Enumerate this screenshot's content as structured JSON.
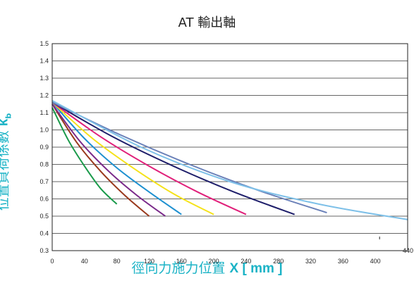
{
  "chart_data": {
    "type": "line",
    "title": "AT 輸出軸",
    "ylabel_text": "位置負荷係數",
    "ylabel_symbol": "k",
    "ylabel_sub": "b",
    "xlabel_text": "徑向力施力位置",
    "xlabel_symbol": "X [ mm ]",
    "xlim": [
      0,
      440
    ],
    "ylim": [
      0.3,
      1.5
    ],
    "xticks": [
      "0",
      "40",
      "80",
      "120",
      "160",
      "200",
      "240",
      "280",
      "320",
      "360",
      "400",
      "440"
    ],
    "yticks": [
      "0.3",
      "0.4",
      "0.5",
      "0.6",
      "0.7",
      "0.8",
      "0.9",
      "1.0",
      "1.1",
      "1.2",
      "1.3",
      "1.4",
      "1.5"
    ],
    "grid": "horizontal",
    "series": [
      {
        "color": "#1a9a4a",
        "x": [
          0,
          20,
          40,
          60,
          80
        ],
        "y": [
          1.13,
          0.94,
          0.79,
          0.66,
          0.57
        ]
      },
      {
        "color": "#9a3a1e",
        "x": [
          0,
          30,
          60,
          90,
          120
        ],
        "y": [
          1.15,
          0.93,
          0.76,
          0.62,
          0.5
        ]
      },
      {
        "color": "#7a2a8a",
        "x": [
          0,
          35,
          70,
          105,
          140
        ],
        "y": [
          1.15,
          0.93,
          0.76,
          0.62,
          0.5
        ]
      },
      {
        "color": "#1e90d0",
        "x": [
          0,
          40,
          80,
          120,
          160
        ],
        "y": [
          1.16,
          0.95,
          0.78,
          0.64,
          0.51
        ]
      },
      {
        "color": "#f5e21a",
        "x": [
          0,
          50,
          100,
          150,
          200
        ],
        "y": [
          1.16,
          0.95,
          0.78,
          0.63,
          0.51
        ]
      },
      {
        "color": "#e0207a",
        "x": [
          0,
          60,
          120,
          180,
          240
        ],
        "y": [
          1.16,
          0.96,
          0.79,
          0.64,
          0.51
        ]
      },
      {
        "color": "#1e1e6a",
        "x": [
          0,
          75,
          150,
          225,
          300
        ],
        "y": [
          1.16,
          0.96,
          0.79,
          0.64,
          0.51
        ]
      },
      {
        "color": "#6a80b8",
        "x": [
          0,
          85,
          170,
          255,
          340
        ],
        "y": [
          1.16,
          0.97,
          0.8,
          0.65,
          0.52
        ]
      },
      {
        "color": "#7ec0e8",
        "x": [
          0,
          110,
          220,
          330,
          440
        ],
        "y": [
          1.17,
          0.9,
          0.7,
          0.57,
          0.48
        ]
      }
    ]
  }
}
